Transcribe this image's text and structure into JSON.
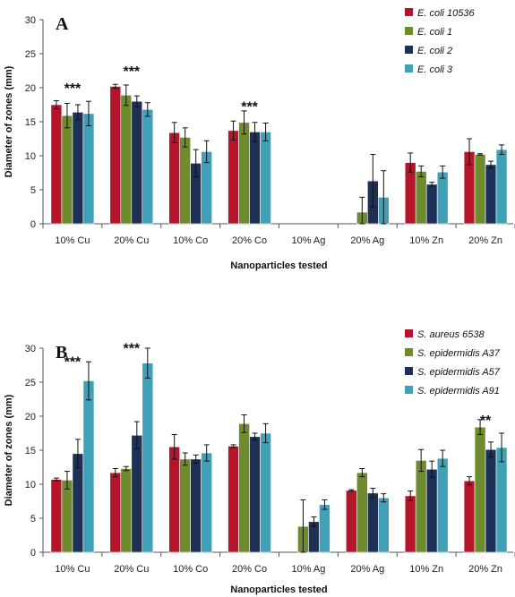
{
  "chart_data": [
    {
      "panel": "A",
      "type": "bar",
      "xlabel": "Nanoparticles tested",
      "ylabel": "Diameter of zones (mm)",
      "ylim": [
        0,
        30
      ],
      "yticks": [
        0,
        5,
        10,
        15,
        20,
        25,
        30
      ],
      "legend_position": "top-right",
      "categories": [
        "10% Cu",
        "20% Cu",
        "10% Co",
        "20% Co",
        "10% Ag",
        "20% Ag",
        "10% Zn",
        "20% Zn"
      ],
      "series": [
        {
          "name": "E. coli 10536",
          "color": "#B5152B",
          "values": [
            17.5,
            20.2,
            13.4,
            13.7,
            0,
            0,
            9.0,
            10.6
          ],
          "errors": [
            0.6,
            0.3,
            1.5,
            1.4,
            0,
            0,
            1.4,
            1.9
          ]
        },
        {
          "name": "E. coli 1",
          "color": "#6E8C2E",
          "values": [
            15.9,
            18.9,
            12.7,
            14.9,
            0,
            1.7,
            7.7,
            10.2
          ],
          "errors": [
            1.8,
            1.5,
            1.4,
            1.7,
            0,
            2.2,
            0.8,
            0.1
          ]
        },
        {
          "name": "E. coli 2",
          "color": "#1D3055",
          "values": [
            16.4,
            18.0,
            8.9,
            13.5,
            0,
            6.3,
            5.8,
            8.7
          ],
          "errors": [
            1.1,
            0.8,
            2.0,
            1.4,
            0,
            3.9,
            0.3,
            0.5
          ]
        },
        {
          "name": "E. coli 3",
          "color": "#3FA0B7",
          "values": [
            16.2,
            16.8,
            10.6,
            13.5,
            0,
            3.9,
            7.6,
            10.9
          ],
          "errors": [
            1.8,
            1.0,
            1.6,
            1.3,
            0,
            3.9,
            0.9,
            0.7
          ]
        }
      ],
      "annotations": [
        {
          "text": "***",
          "category": "10% Cu",
          "y": 20.5
        },
        {
          "text": "***",
          "category": "20% Cu",
          "y": 23.0
        },
        {
          "text": "***",
          "category": "20% Co",
          "y": 17.8
        }
      ]
    },
    {
      "panel": "B",
      "type": "bar",
      "xlabel": "Nanoparticles tested",
      "ylabel": "Diameter of zones (mm)",
      "ylim": [
        0,
        30
      ],
      "yticks": [
        0,
        5,
        10,
        15,
        20,
        25,
        30
      ],
      "legend_position": "top-right",
      "categories": [
        "10% Cu",
        "20% Cu",
        "10% Co",
        "20% Co",
        "10% Ag",
        "20% Ag",
        "10% Zn",
        "20% Zn"
      ],
      "series": [
        {
          "name": "S. aureus 6538",
          "color": "#B5152B",
          "values": [
            10.7,
            11.7,
            15.5,
            15.6,
            0,
            9.1,
            8.3,
            10.5
          ],
          "errors": [
            0.2,
            0.6,
            1.8,
            0.2,
            0,
            0.1,
            0.7,
            0.6
          ]
        },
        {
          "name": "S. epidermidis A37",
          "color": "#6E8C2E",
          "values": [
            10.6,
            12.3,
            13.7,
            18.9,
            3.8,
            11.7,
            13.5,
            18.4
          ],
          "errors": [
            1.3,
            0.3,
            0.9,
            1.3,
            3.9,
            0.6,
            1.6,
            1.1
          ]
        },
        {
          "name": "S. epidermidis A57",
          "color": "#1D3055",
          "values": [
            14.5,
            17.2,
            13.7,
            17.0,
            4.5,
            8.7,
            12.2,
            15.1
          ],
          "errors": [
            2.1,
            2.0,
            0.6,
            0.5,
            0.7,
            0.7,
            1.2,
            1.1
          ]
        },
        {
          "name": "S. epidermidis A91",
          "color": "#3FA0B7",
          "values": [
            25.2,
            27.8,
            14.6,
            17.5,
            7.0,
            8.0,
            13.8,
            15.4
          ],
          "errors": [
            2.8,
            2.2,
            1.2,
            1.4,
            0.7,
            0.6,
            1.2,
            2.1
          ]
        }
      ],
      "annotations": [
        {
          "text": "***",
          "category": "10% Cu",
          "y": 28.6
        },
        {
          "text": "***",
          "category": "20% Cu",
          "y": 30.6
        },
        {
          "text": "**",
          "category": "20% Zn",
          "y": 20.0
        }
      ]
    }
  ]
}
